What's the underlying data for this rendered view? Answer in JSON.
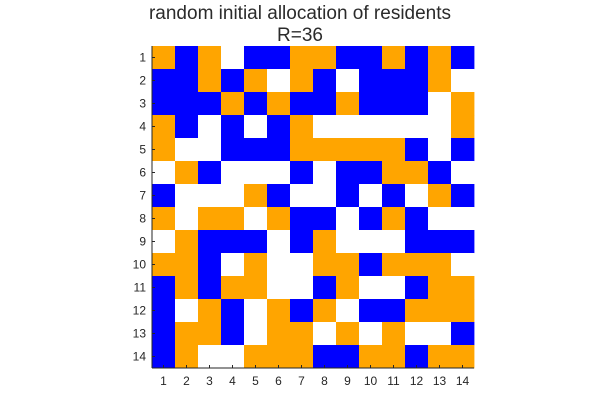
{
  "title": "random initial allocation of residents",
  "subtitle": "R=36",
  "colors": {
    "orange": "#FFA500",
    "blue": "#0000FF",
    "white": "#FFFFFF",
    "axis": "#262626"
  },
  "chart_data": {
    "type": "heatmap",
    "title": "random initial allocation of residents",
    "subtitle": "R=36",
    "x_ticks": [
      "1",
      "2",
      "3",
      "4",
      "5",
      "6",
      "7",
      "8",
      "9",
      "10",
      "11",
      "12",
      "13",
      "14"
    ],
    "y_ticks": [
      "1",
      "2",
      "3",
      "4",
      "5",
      "6",
      "7",
      "8",
      "9",
      "10",
      "11",
      "12",
      "13",
      "14"
    ],
    "value_legend": {
      "0": "white",
      "1": "orange",
      "2": "blue"
    },
    "grid": [
      [
        1,
        2,
        1,
        0,
        2,
        2,
        1,
        1,
        2,
        2,
        1,
        2,
        1,
        2
      ],
      [
        2,
        2,
        1,
        2,
        1,
        0,
        1,
        2,
        0,
        2,
        2,
        2,
        1,
        0
      ],
      [
        2,
        2,
        2,
        1,
        2,
        1,
        2,
        2,
        1,
        2,
        2,
        2,
        0,
        1
      ],
      [
        1,
        2,
        0,
        2,
        0,
        2,
        1,
        0,
        0,
        0,
        0,
        0,
        0,
        1
      ],
      [
        1,
        0,
        0,
        2,
        2,
        2,
        1,
        1,
        1,
        1,
        1,
        2,
        0,
        2
      ],
      [
        0,
        1,
        2,
        0,
        0,
        0,
        2,
        0,
        2,
        2,
        1,
        1,
        2,
        0
      ],
      [
        2,
        0,
        0,
        0,
        1,
        2,
        0,
        0,
        2,
        0,
        2,
        0,
        1,
        2
      ],
      [
        1,
        0,
        1,
        1,
        0,
        1,
        2,
        2,
        0,
        2,
        1,
        2,
        0,
        0
      ],
      [
        0,
        1,
        2,
        2,
        2,
        0,
        2,
        1,
        0,
        0,
        0,
        2,
        2,
        2
      ],
      [
        1,
        1,
        2,
        0,
        1,
        0,
        0,
        1,
        1,
        2,
        1,
        1,
        1,
        0
      ],
      [
        2,
        1,
        2,
        1,
        1,
        0,
        0,
        2,
        1,
        0,
        0,
        2,
        1,
        1
      ],
      [
        2,
        0,
        1,
        2,
        0,
        1,
        2,
        1,
        0,
        2,
        2,
        1,
        1,
        1
      ],
      [
        2,
        1,
        1,
        2,
        0,
        1,
        1,
        0,
        1,
        0,
        1,
        0,
        0,
        2
      ],
      [
        2,
        1,
        0,
        0,
        1,
        1,
        1,
        2,
        2,
        1,
        1,
        2,
        1,
        1
      ]
    ]
  }
}
